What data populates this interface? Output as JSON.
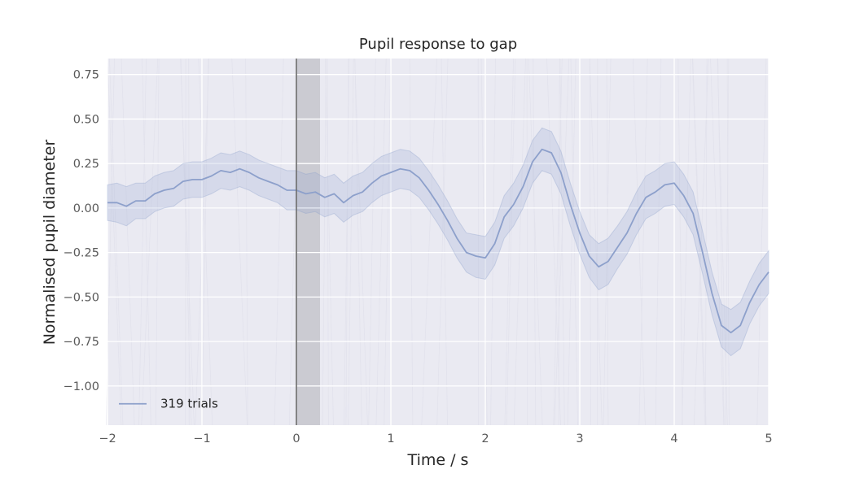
{
  "chart_data": {
    "type": "line",
    "title": "Pupil response to gap",
    "xlabel": "Time / s",
    "ylabel": "Normalised pupil diameter",
    "xlim": [
      -2,
      5
    ],
    "ylim": [
      -1.22,
      0.84
    ],
    "xticks": [
      -2,
      -1,
      0,
      1,
      2,
      3,
      4,
      5
    ],
    "xtick_labels": [
      "−2",
      "−1",
      "0",
      "1",
      "2",
      "3",
      "4",
      "5"
    ],
    "yticks": [
      0.75,
      0.5,
      0.25,
      0.0,
      -0.25,
      -0.5,
      -0.75,
      -1.0
    ],
    "ytick_labels": [
      "0.75",
      "0.50",
      "0.25",
      "0.00",
      "−0.25",
      "−0.50",
      "−0.75",
      "−1.00"
    ],
    "grid": true,
    "legend_position": "lower-left",
    "vline_x": 0,
    "shaded_span": [
      0,
      0.25
    ],
    "colors": {
      "background": "#eaeaf2",
      "grid": "#ffffff",
      "series": "#8da0cb",
      "band": "#8da0cb",
      "vline": "#6b6b6b",
      "span": "#c6c6cc"
    },
    "series": [
      {
        "name": "319 trials",
        "x": [
          -2.0,
          -1.9,
          -1.8,
          -1.7,
          -1.6,
          -1.5,
          -1.4,
          -1.3,
          -1.2,
          -1.1,
          -1.0,
          -0.9,
          -0.8,
          -0.7,
          -0.6,
          -0.5,
          -0.4,
          -0.3,
          -0.2,
          -0.1,
          0.0,
          0.1,
          0.2,
          0.3,
          0.4,
          0.5,
          0.6,
          0.7,
          0.8,
          0.9,
          1.0,
          1.1,
          1.2,
          1.3,
          1.4,
          1.5,
          1.6,
          1.7,
          1.8,
          1.9,
          2.0,
          2.1,
          2.2,
          2.3,
          2.4,
          2.5,
          2.6,
          2.7,
          2.8,
          2.9,
          3.0,
          3.1,
          3.2,
          3.3,
          3.4,
          3.5,
          3.6,
          3.7,
          3.8,
          3.9,
          4.0,
          4.1,
          4.2,
          4.3,
          4.4,
          4.5,
          4.6,
          4.7,
          4.8,
          4.9,
          5.0
        ],
        "values": [
          0.03,
          0.03,
          0.01,
          0.04,
          0.04,
          0.08,
          0.1,
          0.11,
          0.15,
          0.16,
          0.16,
          0.18,
          0.21,
          0.2,
          0.22,
          0.2,
          0.17,
          0.15,
          0.13,
          0.1,
          0.1,
          0.08,
          0.09,
          0.06,
          0.08,
          0.03,
          0.07,
          0.09,
          0.14,
          0.18,
          0.2,
          0.22,
          0.21,
          0.17,
          0.1,
          0.02,
          -0.07,
          -0.17,
          -0.25,
          -0.27,
          -0.28,
          -0.2,
          -0.05,
          0.02,
          0.12,
          0.26,
          0.33,
          0.31,
          0.2,
          0.02,
          -0.14,
          -0.27,
          -0.33,
          -0.3,
          -0.22,
          -0.14,
          -0.03,
          0.06,
          0.09,
          0.13,
          0.14,
          0.07,
          -0.03,
          -0.25,
          -0.48,
          -0.66,
          -0.7,
          -0.66,
          -0.53,
          -0.43,
          -0.36
        ],
        "lower": [
          -0.07,
          -0.08,
          -0.1,
          -0.06,
          -0.06,
          -0.02,
          0.0,
          0.01,
          0.05,
          0.06,
          0.06,
          0.08,
          0.11,
          0.1,
          0.12,
          0.1,
          0.07,
          0.05,
          0.03,
          -0.01,
          -0.01,
          -0.03,
          -0.02,
          -0.05,
          -0.03,
          -0.08,
          -0.04,
          -0.02,
          0.03,
          0.07,
          0.09,
          0.11,
          0.1,
          0.06,
          -0.01,
          -0.09,
          -0.18,
          -0.28,
          -0.36,
          -0.39,
          -0.4,
          -0.32,
          -0.17,
          -0.1,
          0.0,
          0.14,
          0.21,
          0.19,
          0.08,
          -0.1,
          -0.26,
          -0.39,
          -0.46,
          -0.43,
          -0.34,
          -0.26,
          -0.15,
          -0.06,
          -0.03,
          0.01,
          0.02,
          -0.05,
          -0.15,
          -0.37,
          -0.6,
          -0.78,
          -0.83,
          -0.79,
          -0.65,
          -0.55,
          -0.48
        ],
        "upper": [
          0.13,
          0.14,
          0.12,
          0.14,
          0.14,
          0.18,
          0.2,
          0.21,
          0.25,
          0.26,
          0.26,
          0.28,
          0.31,
          0.3,
          0.32,
          0.3,
          0.27,
          0.25,
          0.23,
          0.21,
          0.21,
          0.19,
          0.2,
          0.17,
          0.19,
          0.14,
          0.18,
          0.2,
          0.25,
          0.29,
          0.31,
          0.33,
          0.32,
          0.28,
          0.21,
          0.13,
          0.04,
          -0.06,
          -0.14,
          -0.15,
          -0.16,
          -0.08,
          0.07,
          0.14,
          0.24,
          0.38,
          0.45,
          0.43,
          0.32,
          0.14,
          -0.02,
          -0.15,
          -0.2,
          -0.17,
          -0.1,
          -0.02,
          0.09,
          0.18,
          0.21,
          0.25,
          0.26,
          0.19,
          0.09,
          -0.13,
          -0.36,
          -0.54,
          -0.57,
          -0.53,
          -0.41,
          -0.31,
          -0.24
        ]
      }
    ]
  }
}
